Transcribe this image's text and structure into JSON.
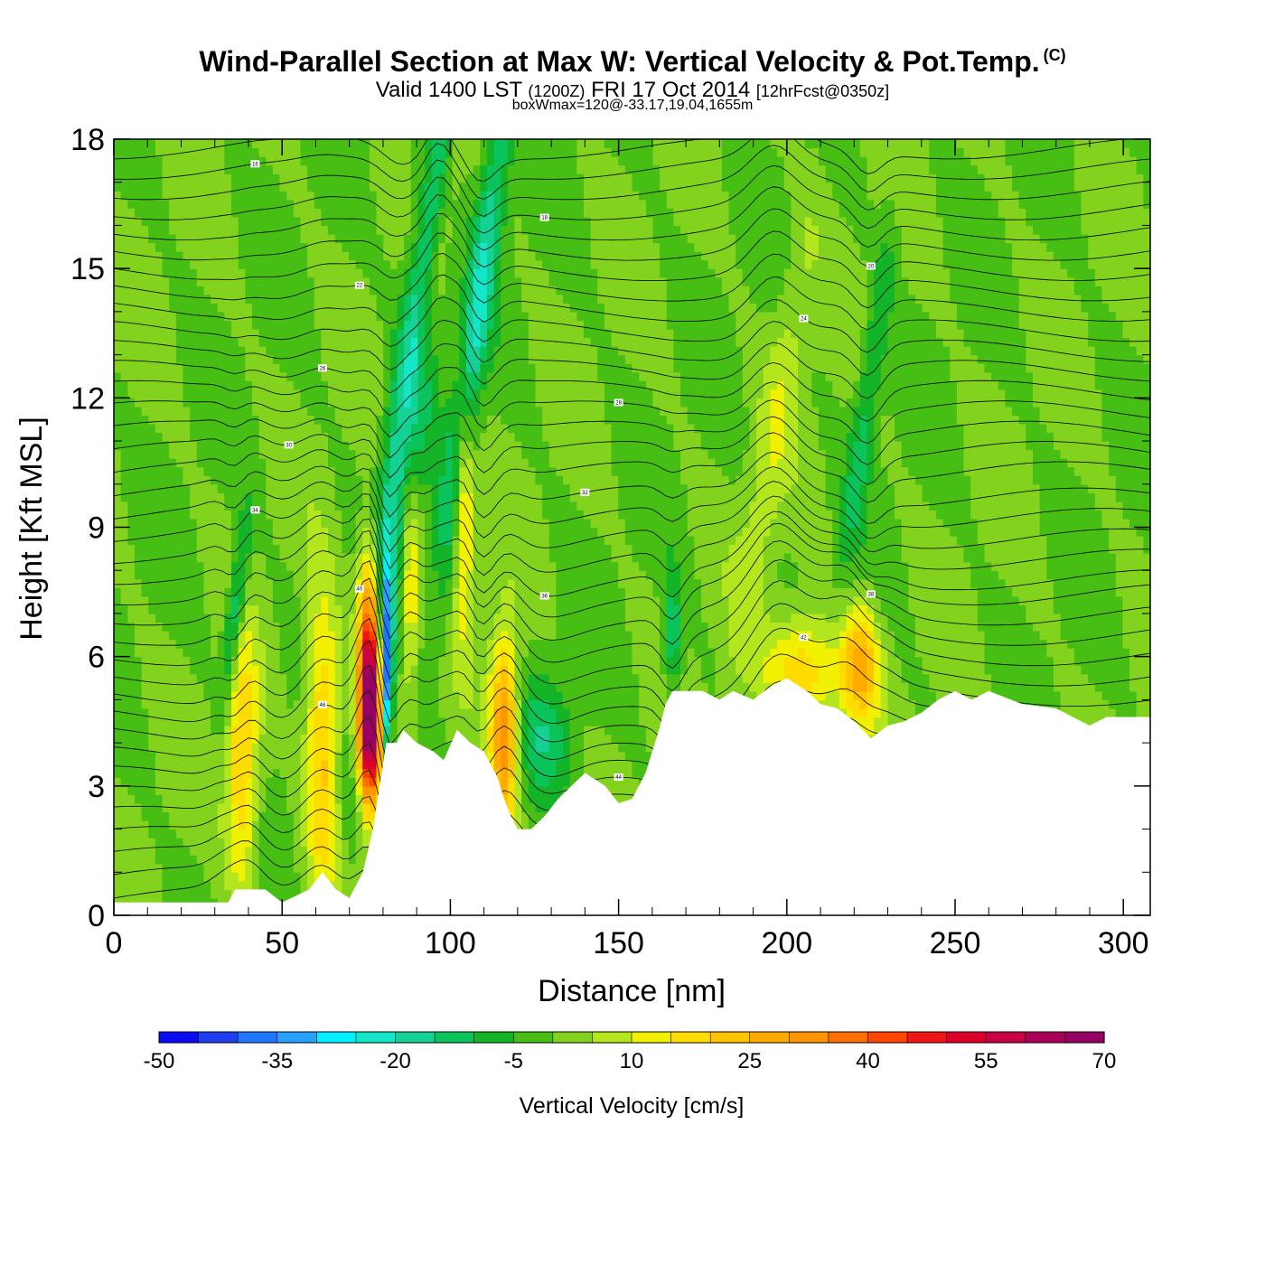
{
  "header": {
    "title": "Wind-Parallel Section at Max W: Vertical Velocity & Pot.Temp.",
    "copyright": "(C)",
    "subtitle_main_a": "Valid 1400 LST",
    "subtitle_small_a": "(1200Z)",
    "subtitle_main_b": "FRI 17 Oct 2014",
    "subtitle_small_b": "[12hrFcst@0350z]",
    "subsubtitle": "boxWmax=120@-33.17,19.04,1655m"
  },
  "chart_data": {
    "type": "heatmap",
    "title": "Wind-Parallel Section at Max W: Vertical Velocity & Pot.Temp.",
    "xlabel": "Distance [nm]",
    "ylabel": "Height [Kft MSL]",
    "xlim": [
      0,
      308
    ],
    "ylim": [
      0,
      18
    ],
    "xticks": [
      0,
      50,
      100,
      150,
      200,
      250,
      300
    ],
    "yticks": [
      0,
      3,
      6,
      9,
      12,
      15,
      18
    ],
    "xtick_labels": [
      "0",
      "50",
      "100",
      "150",
      "200",
      "250",
      "300"
    ],
    "ytick_labels": [
      "0",
      "3",
      "6",
      "9",
      "12",
      "15",
      "18"
    ],
    "background_w": 0,
    "terrain": [
      [
        0,
        0.3
      ],
      [
        10,
        0.3
      ],
      [
        20,
        0.3
      ],
      [
        30,
        0.3
      ],
      [
        34,
        0.3
      ],
      [
        36,
        0.6
      ],
      [
        45,
        0.6
      ],
      [
        50,
        0.3
      ],
      [
        58,
        0.6
      ],
      [
        62,
        1.0
      ],
      [
        66,
        0.6
      ],
      [
        70,
        0.4
      ],
      [
        72,
        0.7
      ],
      [
        74,
        1.0
      ],
      [
        77,
        2.0
      ],
      [
        79,
        3.0
      ],
      [
        81,
        4.0
      ],
      [
        84,
        4.0
      ],
      [
        86,
        4.3
      ],
      [
        90,
        4.0
      ],
      [
        95,
        3.8
      ],
      [
        98,
        3.6
      ],
      [
        102,
        4.3
      ],
      [
        106,
        4.0
      ],
      [
        110,
        3.8
      ],
      [
        114,
        3.2
      ],
      [
        116,
        2.7
      ],
      [
        118,
        2.3
      ],
      [
        120,
        2.0
      ],
      [
        124,
        2.0
      ],
      [
        128,
        2.3
      ],
      [
        132,
        2.7
      ],
      [
        136,
        3.0
      ],
      [
        140,
        3.3
      ],
      [
        146,
        3.0
      ],
      [
        150,
        2.6
      ],
      [
        154,
        2.7
      ],
      [
        158,
        3.3
      ],
      [
        162,
        4.3
      ],
      [
        164,
        4.9
      ],
      [
        166,
        5.2
      ],
      [
        175,
        5.2
      ],
      [
        180,
        5.0
      ],
      [
        184,
        5.2
      ],
      [
        190,
        5.0
      ],
      [
        195,
        5.3
      ],
      [
        200,
        5.5
      ],
      [
        206,
        5.2
      ],
      [
        210,
        4.9
      ],
      [
        215,
        4.8
      ],
      [
        220,
        4.5
      ],
      [
        225,
        4.1
      ],
      [
        230,
        4.4
      ],
      [
        235,
        4.5
      ],
      [
        240,
        4.7
      ],
      [
        245,
        5.0
      ],
      [
        250,
        5.2
      ],
      [
        255,
        5.0
      ],
      [
        260,
        5.2
      ],
      [
        270,
        4.9
      ],
      [
        280,
        4.8
      ],
      [
        285,
        4.6
      ],
      [
        290,
        4.4
      ],
      [
        295,
        4.6
      ],
      [
        300,
        4.6
      ],
      [
        308,
        4.6
      ]
    ],
    "updrafts": [
      {
        "x": 38,
        "y": 3.5,
        "sx": 3.5,
        "sy": 2.2,
        "w": 22,
        "tilt": 0
      },
      {
        "x": 62,
        "y": 4.0,
        "sx": 3.5,
        "sy": 2.4,
        "w": 24,
        "tilt": 0
      },
      {
        "x": 76,
        "y": 5.8,
        "sx": 2.5,
        "sy": 1.8,
        "w": 60,
        "tilt": 0
      },
      {
        "x": 76,
        "y": 4.2,
        "sx": 2.5,
        "sy": 1.2,
        "w": 40,
        "tilt": 0
      },
      {
        "x": 88,
        "y": 8.0,
        "sx": 2.0,
        "sy": 2.0,
        "w": 18,
        "tilt": 0
      },
      {
        "x": 104,
        "y": 9.5,
        "sx": 2.0,
        "sy": 2.0,
        "w": 22,
        "tilt": 0
      },
      {
        "x": 116,
        "y": 4.2,
        "sx": 3.0,
        "sy": 1.6,
        "w": 35,
        "tilt": 0
      },
      {
        "x": 205,
        "y": 5.6,
        "sx": 8.0,
        "sy": 1.0,
        "w": 22,
        "tilt": 0
      },
      {
        "x": 222,
        "y": 5.8,
        "sx": 4.0,
        "sy": 1.0,
        "w": 25,
        "tilt": 0
      },
      {
        "x": 96,
        "y": 15.0,
        "sx": 2.5,
        "sy": 3.0,
        "w": 12,
        "tilt": 6
      },
      {
        "x": 196,
        "y": 11.0,
        "sx": 4.0,
        "sy": 4.0,
        "w": 8,
        "tilt": 6
      }
    ],
    "downdrafts": [
      {
        "x": 81,
        "y": 5.5,
        "sx": 1.2,
        "sy": 1.5,
        "w": -40,
        "tilt": 0
      },
      {
        "x": 88,
        "y": 12.0,
        "sx": 4.0,
        "sy": 5.0,
        "w": -25,
        "tilt": 5
      },
      {
        "x": 108,
        "y": 14.0,
        "sx": 3.0,
        "sy": 5.0,
        "w": -20,
        "tilt": 5
      },
      {
        "x": 36,
        "y": 7.0,
        "sx": 2.0,
        "sy": 1.5,
        "w": -20,
        "tilt": 4
      },
      {
        "x": 128,
        "y": 4.2,
        "sx": 6.0,
        "sy": 1.0,
        "w": -12,
        "tilt": 0
      },
      {
        "x": 166,
        "y": 6.5,
        "sx": 2.0,
        "sy": 1.0,
        "w": -15,
        "tilt": 0
      },
      {
        "x": 224,
        "y": 12.0,
        "sx": 2.5,
        "sy": 3.0,
        "w": -12,
        "tilt": 5
      }
    ],
    "colorbar": {
      "title": "Vertical Velocity [cm/s]",
      "levels": [
        -50,
        70
      ],
      "step": 5,
      "labels": [
        "-50",
        "-35",
        "-20",
        "-5",
        "10",
        "25",
        "40",
        "55",
        "70"
      ],
      "colors": [
        "#0a0af5",
        "#1e3cf0",
        "#1e78ff",
        "#28a0ff",
        "#00f0ff",
        "#14e6c8",
        "#14d296",
        "#0ac35a",
        "#14b428",
        "#46be14",
        "#82d21e",
        "#b4e61e",
        "#f0f000",
        "#ffdc00",
        "#ffc300",
        "#ffaa00",
        "#ff9600",
        "#ff6e00",
        "#ff4600",
        "#f01414",
        "#dc0028",
        "#c80046",
        "#aa005a",
        "#960064"
      ]
    },
    "theta_labels": [
      "44",
      "46",
      "42",
      "40",
      "38",
      "36",
      "34",
      "32",
      "30",
      "28",
      "26",
      "24",
      "22",
      "20",
      "18",
      "16",
      "14"
    ]
  }
}
